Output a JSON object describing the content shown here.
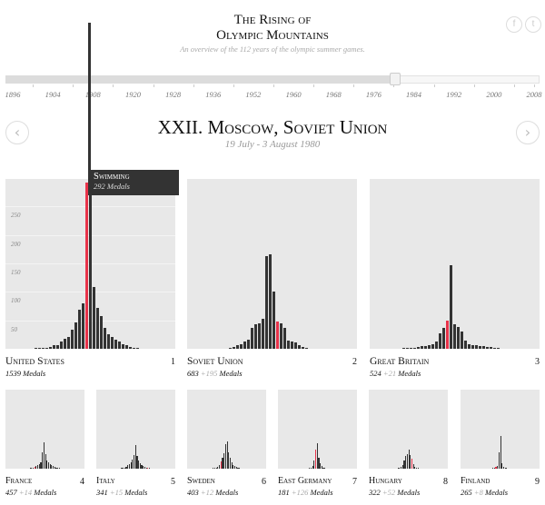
{
  "header": {
    "title_line1": "The Rising of",
    "title_line2": "Olympic Mountains",
    "subtitle": "An overview of the 112 years of the olympic summer games.",
    "social": [
      {
        "icon": "facebook-icon",
        "glyph": "f"
      },
      {
        "icon": "twitter-icon",
        "glyph": "t"
      }
    ]
  },
  "timeline": {
    "years": [
      "1896",
      "1904",
      "1908",
      "1920",
      "1928",
      "1936",
      "1952",
      "1960",
      "1968",
      "1976",
      "1984",
      "1992",
      "2000",
      "2008"
    ],
    "position_fraction": 0.73
  },
  "games": {
    "title": "XXII. Moscow, Soviet Union",
    "dates": "19 July - 3 August 1980",
    "prev_glyph": "‹",
    "next_glyph": "›"
  },
  "tooltip": {
    "sport": "Swimming",
    "medals": "292 Medals"
  },
  "axis": {
    "ticks": [
      "250",
      "200",
      "150",
      "100",
      "50"
    ]
  },
  "colors": {
    "bar": "#333333",
    "highlight": "#e8334a",
    "panel": "#e8e8e8"
  },
  "countries": [
    {
      "name": "United States",
      "rank": "1",
      "medals": "1539",
      "plus": "",
      "suffix": "Medals",
      "values": [
        1,
        1,
        1,
        2,
        4,
        6,
        7,
        12,
        17,
        20,
        33,
        47,
        68,
        79,
        292,
        300,
        108,
        72,
        58,
        37,
        25,
        20,
        16,
        12,
        8,
        6,
        3,
        1,
        1
      ],
      "highlight": 14
    },
    {
      "name": "Soviet Union",
      "rank": "2",
      "medals": "683",
      "plus": "+195",
      "suffix": "Medals",
      "values": [
        2,
        3,
        7,
        8,
        12,
        16,
        37,
        43,
        45,
        53,
        162,
        166,
        101,
        48,
        44,
        37,
        15,
        13,
        11,
        6,
        3,
        1
      ],
      "highlight": 13
    },
    {
      "name": "Great Britain",
      "rank": "3",
      "medals": "524",
      "plus": "+21",
      "suffix": "Medals",
      "values": [
        1,
        1,
        2,
        2,
        4,
        5,
        5,
        6,
        8,
        12,
        27,
        37,
        50,
        146,
        43,
        38,
        30,
        15,
        8,
        6,
        6,
        5,
        5,
        4,
        3,
        2,
        1
      ],
      "highlight": 12
    },
    {
      "name": "France",
      "rank": "4",
      "medals": "457",
      "plus": "+14",
      "suffix": "Medals",
      "values": [
        1,
        2,
        4,
        5,
        8,
        10,
        14,
        18,
        22,
        60,
        96,
        55,
        30,
        24,
        18,
        14,
        10,
        7,
        5,
        3,
        2,
        1
      ],
      "highlight": 4
    },
    {
      "name": "Italy",
      "rank": "5",
      "medals": "341",
      "plus": "+15",
      "suffix": "Medals",
      "values": [
        1,
        2,
        3,
        5,
        8,
        12,
        18,
        24,
        34,
        50,
        88,
        46,
        30,
        20,
        14,
        10,
        6,
        4,
        3,
        2,
        1
      ],
      "highlight": 18
    },
    {
      "name": "Sweden",
      "rank": "6",
      "medals": "403",
      "plus": "+12",
      "suffix": "Medals",
      "values": [
        1,
        2,
        3,
        5,
        8,
        14,
        26,
        40,
        58,
        90,
        100,
        60,
        40,
        25,
        15,
        10,
        6,
        4,
        2,
        1
      ],
      "highlight": 6
    },
    {
      "name": "East Germany",
      "rank": "7",
      "medals": "181",
      "plus": "+126",
      "suffix": "Medals",
      "values": [
        1,
        2,
        4,
        10,
        30,
        70,
        95,
        40,
        20,
        10,
        5,
        3,
        1
      ],
      "highlight": 5
    },
    {
      "name": "Hungary",
      "rank": "8",
      "medals": "322",
      "plus": "+52",
      "suffix": "Medals",
      "values": [
        1,
        2,
        4,
        8,
        14,
        30,
        48,
        52,
        70,
        50,
        36,
        16,
        8,
        4,
        2,
        1
      ],
      "highlight": 10
    },
    {
      "name": "Finland",
      "rank": "9",
      "medals": "265",
      "plus": "+8",
      "suffix": "Medals",
      "values": [
        1,
        2,
        3,
        6,
        10,
        60,
        120,
        20,
        8,
        4,
        2,
        1
      ],
      "highlight": 3
    }
  ]
}
